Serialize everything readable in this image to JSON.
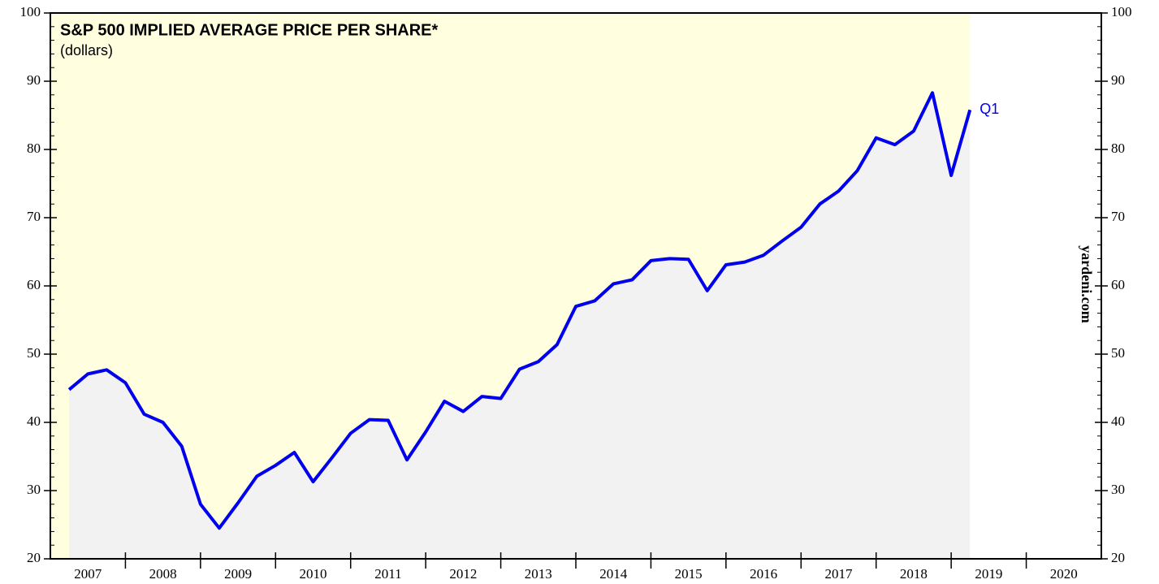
{
  "chart_data": {
    "type": "line",
    "title": "S&P 500 IMPLIED AVERAGE PRICE PER SHARE*",
    "subtitle": "(dollars)",
    "source": "yardeni.com",
    "annotation": "Q1",
    "x": [
      2007.25,
      2007.5,
      2007.75,
      2008,
      2008.25,
      2008.5,
      2008.75,
      2009,
      2009.25,
      2009.5,
      2009.75,
      2010,
      2010.25,
      2010.5,
      2010.75,
      2011,
      2011.25,
      2011.5,
      2011.75,
      2012,
      2012.25,
      2012.5,
      2012.75,
      2013,
      2013.25,
      2013.5,
      2013.75,
      2014,
      2014.25,
      2014.5,
      2014.75,
      2015,
      2015.25,
      2015.5,
      2015.75,
      2016,
      2016.25,
      2016.5,
      2016.75,
      2017,
      2017.25,
      2017.5,
      2017.75,
      2018,
      2018.25,
      2018.5,
      2018.75,
      2019,
      2019.25
    ],
    "series": [
      {
        "name": "S&P 500 implied average price per share",
        "color": "#0000ee",
        "values": [
          44.8,
          47.1,
          47.7,
          45.8,
          41.2,
          40.0,
          36.5,
          28.0,
          24.5,
          28.2,
          32.1,
          33.7,
          35.6,
          31.3,
          34.8,
          38.4,
          40.4,
          40.3,
          34.5,
          38.6,
          43.1,
          41.6,
          43.8,
          43.5,
          47.8,
          48.9,
          51.4,
          57.0,
          57.8,
          60.3,
          60.9,
          63.7,
          64.0,
          63.9,
          59.3,
          63.1,
          63.5,
          64.5,
          66.6,
          68.6,
          72.0,
          73.9,
          76.9,
          81.7,
          80.7,
          82.7,
          88.3,
          76.2,
          85.8
        ]
      }
    ],
    "xlim": [
      2007,
      2021
    ],
    "xticks": [
      {
        "value": 2007.5,
        "label": "2007"
      },
      {
        "value": 2008.5,
        "label": "2008"
      },
      {
        "value": 2009.5,
        "label": "2009"
      },
      {
        "value": 2010.5,
        "label": "2010"
      },
      {
        "value": 2011.5,
        "label": "2011"
      },
      {
        "value": 2012.5,
        "label": "2012"
      },
      {
        "value": 2013.5,
        "label": "2013"
      },
      {
        "value": 2014.5,
        "label": "2014"
      },
      {
        "value": 2015.5,
        "label": "2015"
      },
      {
        "value": 2016.5,
        "label": "2016"
      },
      {
        "value": 2017.5,
        "label": "2017"
      },
      {
        "value": 2018.5,
        "label": "2018"
      },
      {
        "value": 2019.5,
        "label": "2019"
      },
      {
        "value": 2020.5,
        "label": "2020"
      }
    ],
    "ylim": [
      20,
      100
    ],
    "yticks": [
      20,
      30,
      40,
      50,
      60,
      70,
      80,
      90,
      100
    ],
    "y2lim": [
      20,
      100
    ],
    "y2ticks": [
      20,
      30,
      40,
      50,
      60,
      70,
      80,
      90,
      100
    ],
    "background_color": "#ffffe0",
    "area_color": "#f2f2f2"
  }
}
